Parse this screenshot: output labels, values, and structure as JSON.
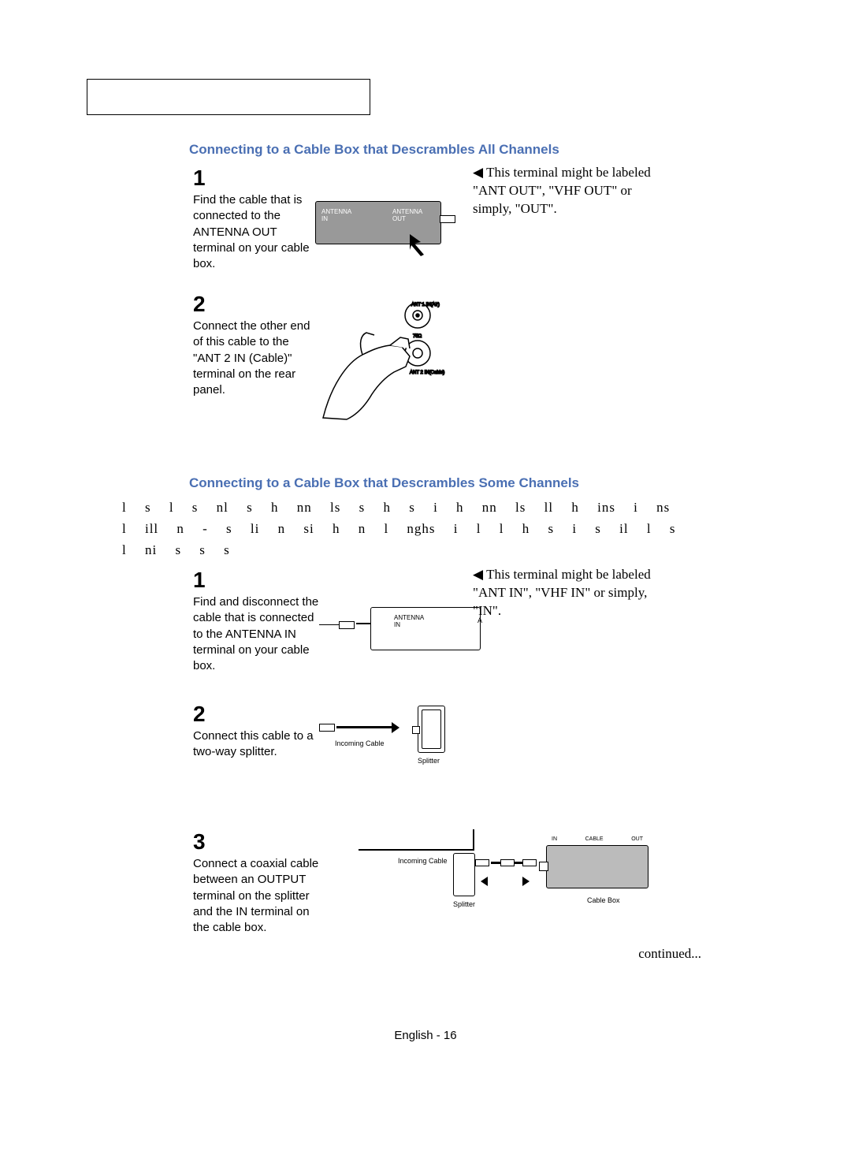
{
  "colors": {
    "accent": "#4a6fb3",
    "grey_box": "#999999",
    "light_grey": "#bbbbbb"
  },
  "header_box_border": "#000000",
  "section_title_1": "Connecting to a Cable Box that Descrambles All Channels",
  "section_title_2": "Connecting to a Cable Box that Descrambles Some Channels",
  "steps_a": {
    "s1": {
      "num": "1",
      "text": "Find the cable that is connected to the ANTENNA OUT terminal on your cable box."
    },
    "s2": {
      "num": "2",
      "text": "Connect the other end of this cable to the \"ANT 2 IN (Cable)\" terminal on the rear panel."
    }
  },
  "steps_b": {
    "s1": {
      "num": "1",
      "text": "Find and disconnect the cable that is connected to the ANTENNA IN terminal on your cable box."
    },
    "s2": {
      "num": "2",
      "text": "Connect this cable to a two-way splitter."
    },
    "s3": {
      "num": "3",
      "text": "Connect a coaxial cable between an OUTPUT terminal on the splitter and the IN terminal on the cable box."
    }
  },
  "notes": {
    "n1": "This terminal might be labeled \"ANT OUT\", \"VHF OUT\" or simply, \"OUT\".",
    "n2": "This terminal might be labeled \"ANT IN\", \"VHF IN\" or simply, \"IN\"."
  },
  "middle_para": "l s l s nl s h nn ls s h s i h nn ls ll h ins i ns l ill n - s li n si h n l nghs i l l h s i s il l s l ni s s s",
  "diagram_labels": {
    "antenna_in": "ANTENNA\nIN",
    "antenna_out": "ANTENNA\nOUT",
    "ant1": "ANT 1 IN\n(Air)",
    "ant2": "ANT 2 IN\n(Cable)",
    "ohm": "75Ω",
    "incoming_cable": "Incoming Cable",
    "splitter": "Splitter",
    "cable_box": "Cable Box",
    "in": "IN",
    "cable": "CABLE",
    "out": "OUT",
    "a": "A"
  },
  "continued": "continued...",
  "footer": "English - 16"
}
